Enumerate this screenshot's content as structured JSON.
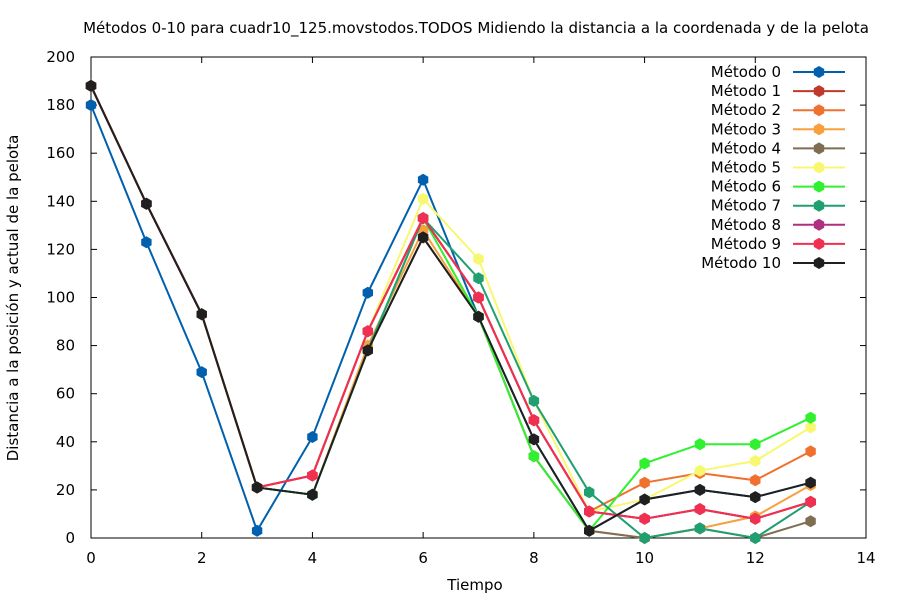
{
  "chart_data": {
    "type": "line",
    "title": "Métodos 0-10 para cuadr10_125.movstodos.TODOS Midiendo la distancia a la coordenada y de la pelota",
    "xlabel": "Tiempo",
    "ylabel": "Distancia a la posición y actual de la pelota",
    "xlim": [
      0,
      14
    ],
    "ylim": [
      0,
      200
    ],
    "xticks": [
      "0",
      "2",
      "4",
      "6",
      "8",
      "10",
      "12",
      "14"
    ],
    "yticks": [
      "0",
      "20",
      "40",
      "60",
      "80",
      "100",
      "120",
      "140",
      "160",
      "180",
      "200"
    ],
    "grid": false,
    "legend_position": "top-right",
    "series": [
      {
        "name": "Método 0",
        "color": "#0060ad",
        "x": [
          0,
          1,
          2,
          3,
          4,
          5,
          6,
          7,
          8,
          9,
          10,
          11,
          12,
          13
        ],
        "y": [
          180,
          123,
          69,
          3,
          42,
          102,
          149,
          92,
          41,
          3,
          16,
          20,
          17,
          23
        ]
      },
      {
        "name": "Método 1",
        "color": "#c0392b",
        "x": [
          0,
          1,
          2,
          3,
          4,
          5,
          6,
          7,
          8,
          9,
          10,
          11,
          12,
          13
        ],
        "y": [
          188,
          139,
          93,
          21,
          26,
          86,
          133,
          100,
          49,
          11,
          8,
          12,
          8,
          15
        ]
      },
      {
        "name": "Método 2",
        "color": "#f07030",
        "x": [
          0,
          1,
          2,
          3,
          4,
          5,
          6,
          7,
          8,
          9,
          10,
          11,
          12,
          13
        ],
        "y": [
          188,
          139,
          93,
          21,
          26,
          86,
          133,
          100,
          49,
          11,
          23,
          27,
          24,
          36
        ]
      },
      {
        "name": "Método 3",
        "color": "#f8a040",
        "x": [
          0,
          1,
          2,
          3,
          4,
          5,
          6,
          7,
          8,
          9,
          10,
          11,
          12,
          13
        ],
        "y": [
          188,
          139,
          93,
          21,
          18,
          80,
          128,
          92,
          34,
          3,
          0,
          4,
          9,
          22
        ]
      },
      {
        "name": "Método 4",
        "color": "#7f6e52",
        "x": [
          0,
          1,
          2,
          3,
          4,
          5,
          6,
          7,
          8,
          9,
          10,
          11,
          12,
          13
        ],
        "y": [
          188,
          139,
          93,
          21,
          18,
          78,
          125,
          92,
          34,
          3,
          0,
          4,
          0,
          7
        ]
      },
      {
        "name": "Método 5",
        "color": "#f8f870",
        "x": [
          0,
          1,
          2,
          3,
          4,
          5,
          6,
          7,
          8,
          9,
          10,
          11,
          12,
          13
        ],
        "y": [
          188,
          139,
          93,
          21,
          26,
          86,
          141,
          116,
          57,
          11,
          16,
          28,
          32,
          46
        ]
      },
      {
        "name": "Método 6",
        "color": "#30f030",
        "x": [
          0,
          1,
          2,
          3,
          4,
          5,
          6,
          7,
          8,
          9,
          10,
          11,
          12,
          13
        ],
        "y": [
          188,
          139,
          93,
          21,
          18,
          78,
          133,
          92,
          34,
          3,
          31,
          39,
          39,
          50
        ]
      },
      {
        "name": "Método 7",
        "color": "#20a070",
        "x": [
          0,
          1,
          2,
          3,
          4,
          5,
          6,
          7,
          8,
          9,
          10,
          11,
          12,
          13
        ],
        "y": [
          188,
          139,
          93,
          21,
          18,
          78,
          133,
          108,
          57,
          19,
          0,
          4,
          0,
          15
        ]
      },
      {
        "name": "Método 8",
        "color": "#b0307f",
        "x": [
          0,
          1,
          2,
          3,
          4,
          5,
          6,
          7,
          8,
          9,
          10,
          11,
          12,
          13
        ],
        "y": [
          188,
          139,
          93,
          21,
          26,
          86,
          133,
          100,
          49,
          11,
          8,
          12,
          8,
          15
        ]
      },
      {
        "name": "Método 9",
        "color": "#f03050",
        "x": [
          0,
          1,
          2,
          3,
          4,
          5,
          6,
          7,
          8,
          9,
          10,
          11,
          12,
          13
        ],
        "y": [
          188,
          139,
          93,
          21,
          26,
          86,
          133,
          100,
          49,
          11,
          8,
          12,
          8,
          15
        ]
      },
      {
        "name": "Método 10",
        "color": "#202020",
        "x": [
          0,
          1,
          2,
          3,
          4,
          5,
          6,
          7,
          8,
          9,
          10,
          11,
          12,
          13
        ],
        "y": [
          188,
          139,
          93,
          21,
          18,
          78,
          125,
          92,
          41,
          3,
          16,
          20,
          17,
          23
        ]
      }
    ]
  }
}
